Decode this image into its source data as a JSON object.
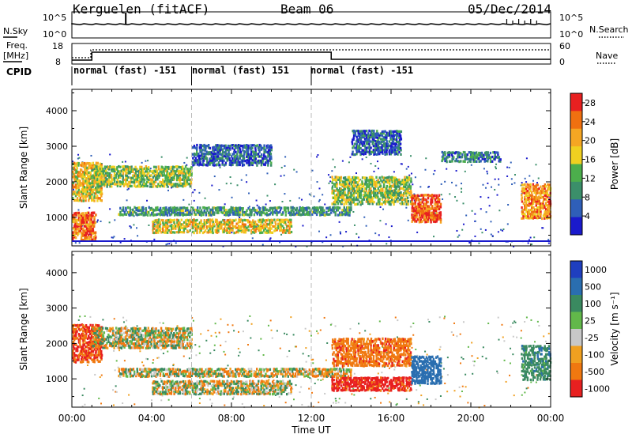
{
  "header": {
    "station": "Kerguelen (fitACF)",
    "beam": "Beam 06",
    "date": "05/Dec/2014"
  },
  "top_panel": {
    "left_label": "N.Sky",
    "left_ticks": [
      "10^5",
      "10^0"
    ],
    "right_ticks": [
      "10^5",
      "10^0"
    ],
    "right_label": "N.Search"
  },
  "freq_panel": {
    "left_label_1": "Freq.",
    "left_label_2": "[MHz]",
    "left_ticks": [
      "18",
      "8"
    ],
    "right_ticks": [
      "60",
      "0"
    ],
    "right_label": "Nave"
  },
  "cpid": {
    "label": "CPID",
    "modes": [
      "normal (fast) -151",
      "normal (fast) 151",
      "normal (fast) -151"
    ]
  },
  "colors": {
    "power_scale": [
      "#1a1acc",
      "#2f5fb8",
      "#3b8f6a",
      "#4cae4c",
      "#f0d020",
      "#f5a623",
      "#f07010",
      "#e82020"
    ],
    "velocity_scale": [
      "#1f3fbf",
      "#2a6eb0",
      "#3a8a60",
      "#62b84a",
      "#c8c8c8",
      "#f0a020",
      "#f07810",
      "#e82020"
    ],
    "ground": "#c0c0c0"
  },
  "chart_data": [
    {
      "type": "heatmap",
      "name": "Power",
      "xlabel": "",
      "ylabel": "Slant Range [km]",
      "ylim": [
        200,
        4600
      ],
      "yticks": [
        "1000",
        "2000",
        "3000",
        "4000"
      ],
      "xlim": [
        "00:00",
        "24:00"
      ],
      "colorbar": {
        "label": "Power [dB]",
        "ticks": [
          "4",
          "8",
          "12",
          "16",
          "20",
          "24",
          "28"
        ],
        "range": [
          0,
          30
        ]
      },
      "echo_regions": [
        {
          "t": [
            0.0,
            1.2
          ],
          "r": [
            400,
            1200
          ],
          "v": 24
        },
        {
          "t": [
            0.0,
            1.5
          ],
          "r": [
            1500,
            2600
          ],
          "v": 18
        },
        {
          "t": [
            1.0,
            6.0
          ],
          "r": [
            1900,
            2500
          ],
          "v": 14
        },
        {
          "t": [
            2.3,
            14.0
          ],
          "r": [
            1100,
            1350
          ],
          "v": 10
        },
        {
          "t": [
            4.0,
            11.0
          ],
          "r": [
            600,
            1000
          ],
          "v": 18
        },
        {
          "t": [
            6.0,
            10.0
          ],
          "r": [
            2500,
            3100
          ],
          "v": 6
        },
        {
          "t": [
            13.0,
            17.0
          ],
          "r": [
            1400,
            2200
          ],
          "v": 14
        },
        {
          "t": [
            14.0,
            16.5
          ],
          "r": [
            2800,
            3500
          ],
          "v": 6
        },
        {
          "t": [
            17.0,
            18.5
          ],
          "r": [
            900,
            1700
          ],
          "v": 26
        },
        {
          "t": [
            18.5,
            21.5
          ],
          "r": [
            2600,
            2900
          ],
          "v": 8
        },
        {
          "t": [
            22.5,
            24.0
          ],
          "r": [
            1000,
            2000
          ],
          "v": 22
        }
      ]
    },
    {
      "type": "heatmap",
      "name": "Velocity",
      "xlabel": "Time UT",
      "ylabel": "Slant Range [km]",
      "ylim": [
        200,
        4600
      ],
      "yticks": [
        "1000",
        "2000",
        "3000",
        "4000"
      ],
      "xticks": [
        "00:00",
        "04:00",
        "08:00",
        "12:00",
        "16:00",
        "20:00",
        "00:00"
      ],
      "colorbar": {
        "label": "Velocity [m s⁻¹]",
        "ticks": [
          "1000",
          "500",
          "100",
          "25",
          "-25",
          "-100",
          "-500",
          "-1000"
        ]
      },
      "echo_regions": [
        {
          "t": [
            0.0,
            1.5
          ],
          "r": [
            1500,
            2600
          ],
          "v": -300
        },
        {
          "t": [
            1.0,
            6.0
          ],
          "r": [
            1900,
            2500
          ],
          "v": 0
        },
        {
          "t": [
            2.3,
            14.0
          ],
          "r": [
            1100,
            1350
          ],
          "v": 0
        },
        {
          "t": [
            4.0,
            11.0
          ],
          "r": [
            600,
            1000
          ],
          "v": 0
        },
        {
          "t": [
            13.0,
            17.0
          ],
          "r": [
            1400,
            2200
          ],
          "v": -200
        },
        {
          "t": [
            13.0,
            17.0
          ],
          "r": [
            700,
            1100
          ],
          "v": -400
        },
        {
          "t": [
            17.0,
            18.5
          ],
          "r": [
            900,
            1700
          ],
          "v": 500
        },
        {
          "t": [
            22.5,
            24.0
          ],
          "r": [
            1000,
            2000
          ],
          "v": 200
        }
      ]
    }
  ]
}
